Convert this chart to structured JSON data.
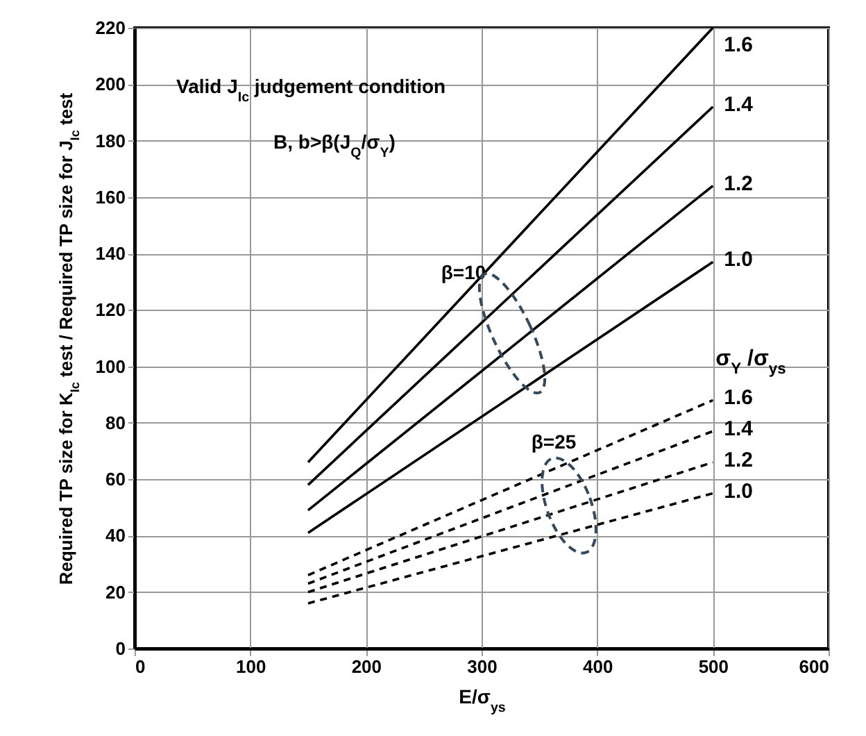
{
  "chart_data": {
    "type": "line",
    "xlabel": "E/σ$_{ys}$",
    "ylabel": "Required TP size for K$_{Ic}$ test / Required TP size for J$_{Ic}$ test",
    "legend_title": "σ$_{Y}$ /σ$_{ys}$",
    "annotations": [
      "Valid J$_{Ic}$ judgement condition",
      "B, b>β(J$_{Q}$/σ$_{Y}$)",
      "β=10",
      "β=25"
    ],
    "x": [
      150,
      500
    ],
    "series": [
      {
        "name": "1.6",
        "color": "#000000",
        "line_style": "solid",
        "values": [
          66,
          220
        ]
      },
      {
        "name": "1.4",
        "color": "#000000",
        "line_style": "solid",
        "values": [
          58,
          192
        ]
      },
      {
        "name": "1.2",
        "color": "#000000",
        "line_style": "solid",
        "values": [
          49,
          164
        ]
      },
      {
        "name": "1.0",
        "color": "#000000",
        "line_style": "solid",
        "values": [
          41,
          137
        ]
      },
      {
        "name": "1.6",
        "color": "#000000",
        "line_style": "dashed",
        "values": [
          26,
          88
        ]
      },
      {
        "name": "1.4",
        "color": "#000000",
        "line_style": "dashed",
        "values": [
          23,
          77
        ]
      },
      {
        "name": "1.2",
        "color": "#000000",
        "line_style": "dashed",
        "values": [
          20,
          66
        ]
      },
      {
        "name": "1.0",
        "color": "#000000",
        "line_style": "dashed",
        "values": [
          16,
          55
        ]
      }
    ],
    "xlim": [
      0,
      600
    ],
    "xticks": [
      0,
      100,
      200,
      300,
      400,
      500,
      600
    ],
    "ylim": [
      0,
      220
    ],
    "yticks": [
      0,
      20,
      40,
      60,
      80,
      100,
      120,
      140,
      160,
      180,
      200,
      220
    ],
    "grid": true,
    "legend": "right",
    "marker": "none"
  }
}
